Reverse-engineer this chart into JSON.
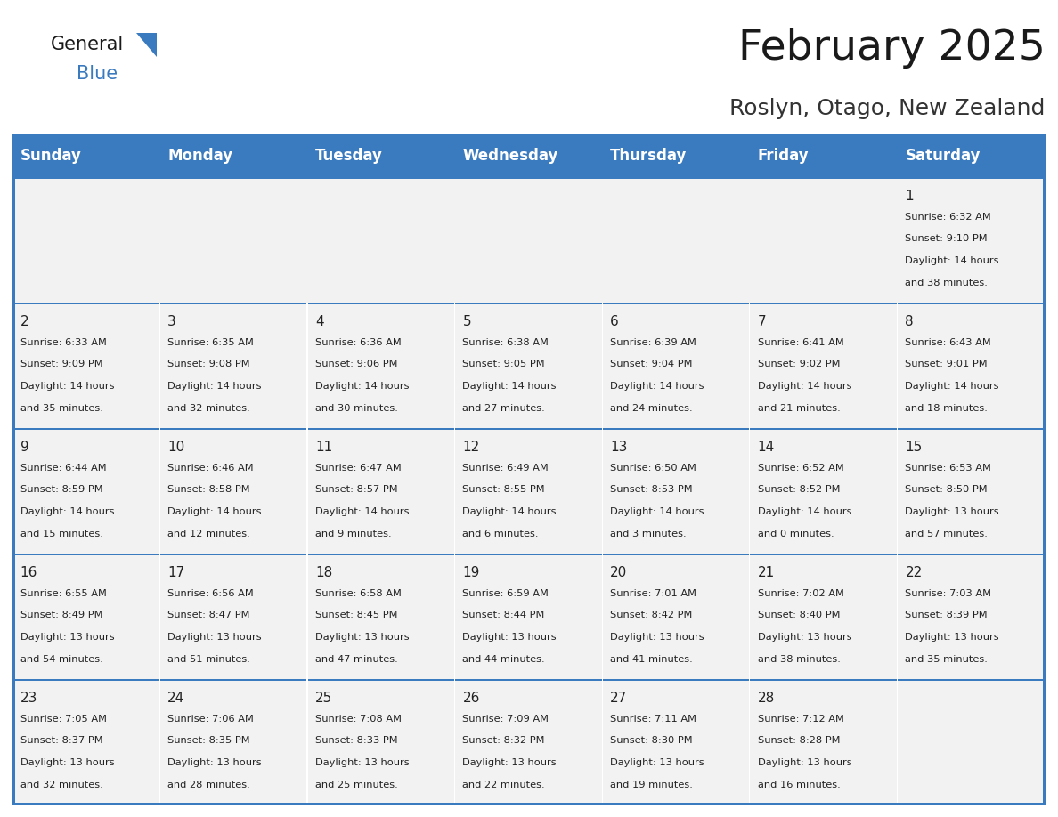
{
  "title": "February 2025",
  "subtitle": "Roslyn, Otago, New Zealand",
  "days_of_week": [
    "Sunday",
    "Monday",
    "Tuesday",
    "Wednesday",
    "Thursday",
    "Friday",
    "Saturday"
  ],
  "header_bg": "#3a7abf",
  "header_text": "#ffffff",
  "cell_bg": "#f2f2f2",
  "cell_border_color": "#3a7abf",
  "text_color": "#222222",
  "day_number_color": "#222222",
  "calendar_data": [
    [
      null,
      null,
      null,
      null,
      null,
      null,
      {
        "day": "1",
        "sunrise": "6:32 AM",
        "sunset": "9:10 PM",
        "daylight_hours": "14",
        "daylight_mins": "38"
      }
    ],
    [
      {
        "day": "2",
        "sunrise": "6:33 AM",
        "sunset": "9:09 PM",
        "daylight_hours": "14",
        "daylight_mins": "35"
      },
      {
        "day": "3",
        "sunrise": "6:35 AM",
        "sunset": "9:08 PM",
        "daylight_hours": "14",
        "daylight_mins": "32"
      },
      {
        "day": "4",
        "sunrise": "6:36 AM",
        "sunset": "9:06 PM",
        "daylight_hours": "14",
        "daylight_mins": "30"
      },
      {
        "day": "5",
        "sunrise": "6:38 AM",
        "sunset": "9:05 PM",
        "daylight_hours": "14",
        "daylight_mins": "27"
      },
      {
        "day": "6",
        "sunrise": "6:39 AM",
        "sunset": "9:04 PM",
        "daylight_hours": "14",
        "daylight_mins": "24"
      },
      {
        "day": "7",
        "sunrise": "6:41 AM",
        "sunset": "9:02 PM",
        "daylight_hours": "14",
        "daylight_mins": "21"
      },
      {
        "day": "8",
        "sunrise": "6:43 AM",
        "sunset": "9:01 PM",
        "daylight_hours": "14",
        "daylight_mins": "18"
      }
    ],
    [
      {
        "day": "9",
        "sunrise": "6:44 AM",
        "sunset": "8:59 PM",
        "daylight_hours": "14",
        "daylight_mins": "15"
      },
      {
        "day": "10",
        "sunrise": "6:46 AM",
        "sunset": "8:58 PM",
        "daylight_hours": "14",
        "daylight_mins": "12"
      },
      {
        "day": "11",
        "sunrise": "6:47 AM",
        "sunset": "8:57 PM",
        "daylight_hours": "14",
        "daylight_mins": "9"
      },
      {
        "day": "12",
        "sunrise": "6:49 AM",
        "sunset": "8:55 PM",
        "daylight_hours": "14",
        "daylight_mins": "6"
      },
      {
        "day": "13",
        "sunrise": "6:50 AM",
        "sunset": "8:53 PM",
        "daylight_hours": "14",
        "daylight_mins": "3"
      },
      {
        "day": "14",
        "sunrise": "6:52 AM",
        "sunset": "8:52 PM",
        "daylight_hours": "14",
        "daylight_mins": "0"
      },
      {
        "day": "15",
        "sunrise": "6:53 AM",
        "sunset": "8:50 PM",
        "daylight_hours": "13",
        "daylight_mins": "57"
      }
    ],
    [
      {
        "day": "16",
        "sunrise": "6:55 AM",
        "sunset": "8:49 PM",
        "daylight_hours": "13",
        "daylight_mins": "54"
      },
      {
        "day": "17",
        "sunrise": "6:56 AM",
        "sunset": "8:47 PM",
        "daylight_hours": "13",
        "daylight_mins": "51"
      },
      {
        "day": "18",
        "sunrise": "6:58 AM",
        "sunset": "8:45 PM",
        "daylight_hours": "13",
        "daylight_mins": "47"
      },
      {
        "day": "19",
        "sunrise": "6:59 AM",
        "sunset": "8:44 PM",
        "daylight_hours": "13",
        "daylight_mins": "44"
      },
      {
        "day": "20",
        "sunrise": "7:01 AM",
        "sunset": "8:42 PM",
        "daylight_hours": "13",
        "daylight_mins": "41"
      },
      {
        "day": "21",
        "sunrise": "7:02 AM",
        "sunset": "8:40 PM",
        "daylight_hours": "13",
        "daylight_mins": "38"
      },
      {
        "day": "22",
        "sunrise": "7:03 AM",
        "sunset": "8:39 PM",
        "daylight_hours": "13",
        "daylight_mins": "35"
      }
    ],
    [
      {
        "day": "23",
        "sunrise": "7:05 AM",
        "sunset": "8:37 PM",
        "daylight_hours": "13",
        "daylight_mins": "32"
      },
      {
        "day": "24",
        "sunrise": "7:06 AM",
        "sunset": "8:35 PM",
        "daylight_hours": "13",
        "daylight_mins": "28"
      },
      {
        "day": "25",
        "sunrise": "7:08 AM",
        "sunset": "8:33 PM",
        "daylight_hours": "13",
        "daylight_mins": "25"
      },
      {
        "day": "26",
        "sunrise": "7:09 AM",
        "sunset": "8:32 PM",
        "daylight_hours": "13",
        "daylight_mins": "22"
      },
      {
        "day": "27",
        "sunrise": "7:11 AM",
        "sunset": "8:30 PM",
        "daylight_hours": "13",
        "daylight_mins": "19"
      },
      {
        "day": "28",
        "sunrise": "7:12 AM",
        "sunset": "8:28 PM",
        "daylight_hours": "13",
        "daylight_mins": "16"
      },
      null
    ]
  ],
  "title_fontsize": 34,
  "subtitle_fontsize": 18,
  "header_fontsize": 12,
  "day_number_fontsize": 11,
  "cell_text_fontsize": 8.2
}
